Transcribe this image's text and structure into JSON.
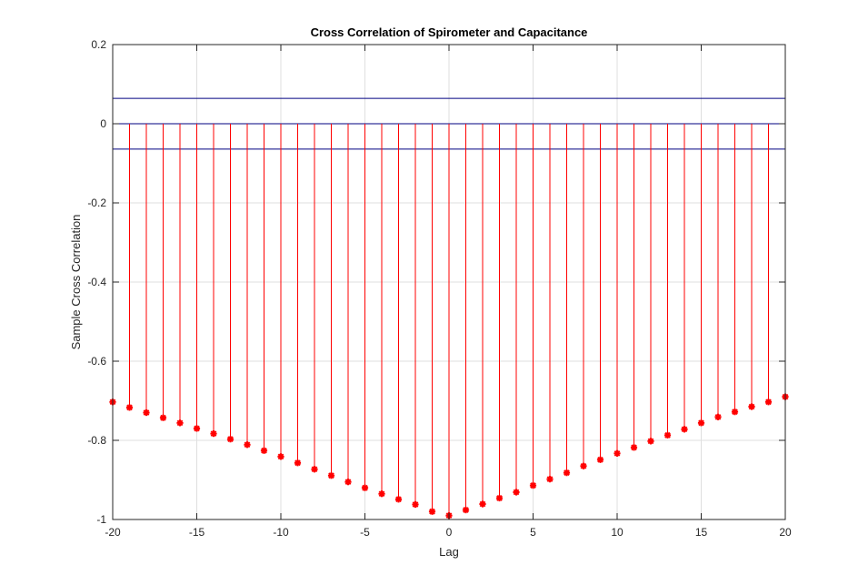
{
  "chart_data": {
    "type": "stem",
    "title": "Cross Correlation of Spirometer and Capacitance",
    "xlabel": "Lag",
    "ylabel": "Sample Cross Correlation",
    "xlim": [
      -20,
      20
    ],
    "ylim": [
      -1,
      0.2
    ],
    "xticks": [
      -20,
      -15,
      -10,
      -5,
      0,
      5,
      10,
      15,
      20
    ],
    "yticks": [
      -1,
      -0.8,
      -0.6,
      -0.4,
      -0.2,
      0,
      0.2
    ],
    "xtick_labels": [
      "-20",
      "-15",
      "-10",
      "-5",
      "0",
      "5",
      "10",
      "15",
      "20"
    ],
    "ytick_labels": [
      "-1",
      "-0.8",
      "-0.6",
      "-0.4",
      "-0.2",
      "0",
      "0.2"
    ],
    "grid": true,
    "series": [
      {
        "color": "#ff0000",
        "marker": "asterisk",
        "x": [
          -20,
          -19,
          -18,
          -17,
          -16,
          -15,
          -14,
          -13,
          -12,
          -11,
          -10,
          -9,
          -8,
          -7,
          -6,
          -5,
          -4,
          -3,
          -2,
          -1,
          0,
          1,
          2,
          3,
          4,
          5,
          6,
          7,
          8,
          9,
          10,
          11,
          12,
          13,
          14,
          15,
          16,
          17,
          18,
          19,
          20
        ],
        "y": [
          -0.703,
          -0.717,
          -0.73,
          -0.743,
          -0.756,
          -0.77,
          -0.783,
          -0.797,
          -0.811,
          -0.826,
          -0.841,
          -0.857,
          -0.873,
          -0.889,
          -0.905,
          -0.92,
          -0.935,
          -0.949,
          -0.962,
          -0.98,
          -0.99,
          -0.976,
          -0.961,
          -0.946,
          -0.931,
          -0.914,
          -0.898,
          -0.882,
          -0.865,
          -0.849,
          -0.833,
          -0.818,
          -0.802,
          -0.787,
          -0.772,
          -0.756,
          -0.741,
          -0.728,
          -0.715,
          -0.703,
          -0.69
        ]
      }
    ],
    "reference_lines": [
      {
        "y": 0.064,
        "color": "#000080"
      },
      {
        "y": 0,
        "color": "#000080"
      },
      {
        "y": -0.064,
        "color": "#000080"
      }
    ]
  }
}
